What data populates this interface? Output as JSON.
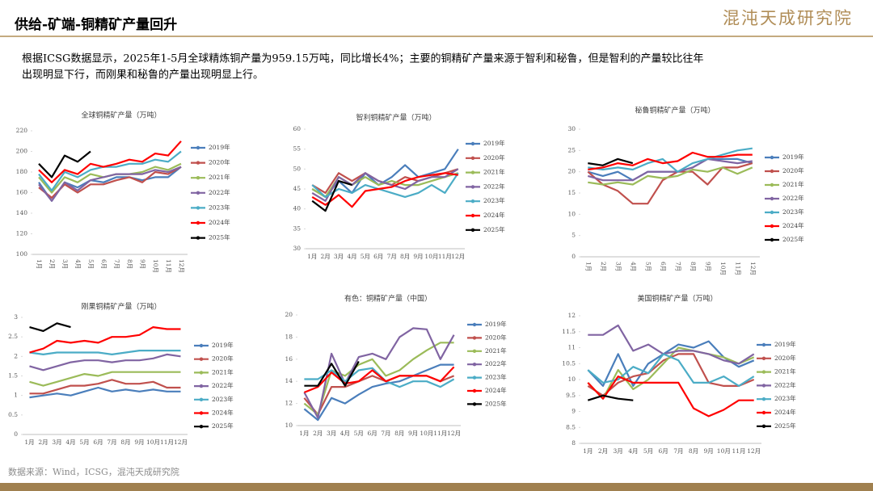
{
  "header": {
    "title": "供给-矿端-铜精矿产量回升",
    "logo": "混沌天成研究院"
  },
  "body_text": [
    "根据ICSG数据显示，2025年1-5月全球精炼铜产量为959.15万吨，同比增长4%；主要的铜精矿产量来源于智利和秘鲁，但是智利的产量较比往年",
    "出现明显下行，而刚果和秘鲁的产量出现明显上行。"
  ],
  "source": "数据来源：Wind，ICSG，混沌天成研究院",
  "chart_data": [
    {
      "type": "line",
      "title": "全球铜精矿产量（万吨）",
      "categories": [
        "1月",
        "2月",
        "3月",
        "4月",
        "5月",
        "6月",
        "7月",
        "8月",
        "9月",
        "10月",
        "11月",
        "12月"
      ],
      "ylim": [
        100,
        220
      ],
      "yticks": [
        100,
        120,
        140,
        160,
        180,
        200,
        220
      ],
      "series": [
        {
          "name": "2019年",
          "color": "#4a7ebb",
          "values": [
            170,
            152,
            170,
            165,
            172,
            170,
            175,
            175,
            172,
            175,
            175,
            185
          ]
        },
        {
          "name": "2020年",
          "color": "#c0504d",
          "values": [
            165,
            155,
            168,
            160,
            168,
            168,
            172,
            175,
            170,
            180,
            178,
            185
          ]
        },
        {
          "name": "2021年",
          "color": "#9bbb59",
          "values": [
            175,
            160,
            175,
            170,
            178,
            175,
            178,
            178,
            180,
            185,
            182,
            188
          ]
        },
        {
          "name": "2022年",
          "color": "#8064a2",
          "values": [
            168,
            152,
            170,
            162,
            172,
            175,
            178,
            178,
            178,
            182,
            180,
            185
          ]
        },
        {
          "name": "2023年",
          "color": "#4bacc6",
          "values": [
            178,
            162,
            180,
            175,
            182,
            185,
            185,
            188,
            188,
            192,
            190,
            200
          ]
        },
        {
          "name": "2024年",
          "color": "#ff0000",
          "values": [
            182,
            170,
            182,
            178,
            188,
            185,
            188,
            192,
            190,
            198,
            196,
            210
          ]
        },
        {
          "name": "2025年",
          "color": "#000000",
          "values": [
            188,
            175,
            196,
            190,
            200,
            null,
            null,
            null,
            null,
            null,
            null,
            null
          ]
        }
      ]
    },
    {
      "type": "line",
      "title": "智利铜精矿产量（万吨）",
      "categories": [
        "1月",
        "2月",
        "3月",
        "4月",
        "5月",
        "6月",
        "7月",
        "8月",
        "9月",
        "10月",
        "11月",
        "12月"
      ],
      "ylim": [
        30,
        60
      ],
      "yticks": [
        30,
        35,
        40,
        45,
        50,
        55,
        60
      ],
      "series": [
        {
          "name": "2019年",
          "color": "#4a7ebb",
          "values": [
            45,
            43,
            47,
            44,
            49,
            46,
            48,
            51,
            48,
            49,
            50,
            55
          ]
        },
        {
          "name": "2020年",
          "color": "#c0504d",
          "values": [
            46,
            44,
            49,
            47,
            49,
            47,
            46,
            48,
            47,
            48,
            49,
            50
          ]
        },
        {
          "name": "2021年",
          "color": "#9bbb59",
          "values": [
            45,
            43,
            48,
            46,
            48,
            46,
            47,
            46,
            46,
            47,
            48,
            49
          ]
        },
        {
          "name": "2022年",
          "color": "#8064a2",
          "values": [
            44,
            42,
            48,
            46,
            49,
            47,
            46,
            45,
            47,
            48,
            48,
            50
          ]
        },
        {
          "name": "2023年",
          "color": "#4bacc6",
          "values": [
            46,
            43,
            45,
            44,
            46,
            45,
            44,
            43,
            44,
            46,
            44,
            49
          ]
        },
        {
          "name": "2024年",
          "color": "#ff0000",
          "values": [
            43,
            41,
            43.5,
            40.5,
            44.5,
            45,
            45.5,
            47,
            48,
            48.5,
            49,
            48.5
          ]
        },
        {
          "name": "2025年",
          "color": "#000000",
          "values": [
            42,
            39.5,
            47,
            46,
            null,
            null,
            null,
            null,
            null,
            null,
            null,
            null
          ]
        }
      ]
    },
    {
      "type": "line",
      "title": "秘鲁铜精矿产量（万吨）",
      "categories": [
        "1月",
        "2月",
        "3月",
        "4月",
        "5月",
        "6月",
        "7月",
        "8月",
        "9月",
        "10月",
        "11月",
        "12月"
      ],
      "ylim": [
        0,
        30
      ],
      "yticks": [
        0,
        5,
        10,
        15,
        20,
        25,
        30
      ],
      "series": [
        {
          "name": "2019年",
          "color": "#4a7ebb",
          "values": [
            20,
            19,
            20,
            18,
            20,
            20,
            20,
            21,
            23,
            23,
            23,
            22
          ]
        },
        {
          "name": "2020年",
          "color": "#c0504d",
          "values": [
            20,
            17,
            15.5,
            12.5,
            12.5,
            18,
            20,
            20,
            17,
            21,
            21,
            22
          ]
        },
        {
          "name": "2021年",
          "color": "#9bbb59",
          "values": [
            17.5,
            17,
            17.5,
            17,
            19,
            18.5,
            19,
            20.5,
            20,
            21,
            19.5,
            21
          ]
        },
        {
          "name": "2022年",
          "color": "#8064a2",
          "values": [
            19,
            18,
            18,
            18,
            20,
            20,
            20,
            21,
            23,
            22.5,
            22,
            22.5
          ]
        },
        {
          "name": "2023年",
          "color": "#4bacc6",
          "values": [
            21,
            20.5,
            21,
            20.5,
            22,
            23,
            20,
            22,
            23,
            24,
            25,
            25.5
          ]
        },
        {
          "name": "2024年",
          "color": "#ff0000",
          "values": [
            20.5,
            21,
            22,
            21.5,
            23,
            22,
            22.5,
            24.5,
            23.5,
            23.5,
            24,
            24
          ]
        },
        {
          "name": "2025年",
          "color": "#000000",
          "values": [
            22,
            21.5,
            23,
            22,
            null,
            null,
            null,
            null,
            null,
            null,
            null,
            null
          ]
        }
      ]
    },
    {
      "type": "line",
      "title": "刚果铜精矿产量（万吨）",
      "categories": [
        "1月",
        "2月",
        "3月",
        "4月",
        "5月",
        "6月",
        "7月",
        "8月",
        "9月",
        "10月",
        "11月",
        "12月"
      ],
      "ylim": [
        0,
        3
      ],
      "yticks": [
        0,
        0.5,
        1,
        1.5,
        2,
        2.5,
        3
      ],
      "series": [
        {
          "name": "2019年",
          "color": "#4a7ebb",
          "values": [
            0.95,
            1,
            1.05,
            1,
            1.1,
            1.2,
            1.1,
            1.15,
            1.1,
            1.15,
            1.1,
            1.1
          ]
        },
        {
          "name": "2020年",
          "color": "#c0504d",
          "values": [
            1.05,
            1.05,
            1.15,
            1.25,
            1.25,
            1.3,
            1.4,
            1.3,
            1.3,
            1.35,
            1.2,
            1.2
          ]
        },
        {
          "name": "2021年",
          "color": "#9bbb59",
          "values": [
            1.35,
            1.25,
            1.35,
            1.45,
            1.55,
            1.5,
            1.6,
            1.6,
            1.6,
            1.6,
            1.6,
            1.6
          ]
        },
        {
          "name": "2022年",
          "color": "#8064a2",
          "values": [
            1.75,
            1.65,
            1.75,
            1.85,
            1.9,
            1.9,
            1.85,
            1.9,
            1.9,
            1.95,
            2.05,
            2
          ]
        },
        {
          "name": "2023年",
          "color": "#4bacc6",
          "values": [
            2.1,
            2.05,
            2.1,
            2.1,
            2.1,
            2.1,
            2.05,
            2.1,
            2.15,
            2.15,
            2.15,
            2.15
          ]
        },
        {
          "name": "2024年",
          "color": "#ff0000",
          "values": [
            2.1,
            2.2,
            2.4,
            2.35,
            2.4,
            2.35,
            2.5,
            2.5,
            2.55,
            2.75,
            2.7,
            2.7
          ]
        },
        {
          "name": "2025年",
          "color": "#000000",
          "values": [
            2.75,
            2.65,
            2.85,
            2.75,
            null,
            null,
            null,
            null,
            null,
            null,
            null,
            null
          ]
        }
      ]
    },
    {
      "type": "line",
      "title": "有色：铜精矿产量（中国）",
      "categories": [
        "1月",
        "2月",
        "3月",
        "4月",
        "5月",
        "6月",
        "7月",
        "8月",
        "9月",
        "10月",
        "11月",
        "12月"
      ],
      "ylim": [
        10,
        20
      ],
      "yticks": [
        10,
        12,
        14,
        16,
        18,
        20
      ],
      "series": [
        {
          "name": "2019年",
          "color": "#4a7ebb",
          "values": [
            11.5,
            10.5,
            12.5,
            12,
            12.8,
            13.5,
            13.8,
            14,
            14.5,
            15,
            15.5,
            15.5
          ]
        },
        {
          "name": "2020年",
          "color": "#c0504d",
          "values": [
            12.5,
            11,
            13.5,
            13.5,
            14,
            14.5,
            14,
            14.5,
            14.5,
            14.5,
            14,
            14.5
          ]
        },
        {
          "name": "2021年",
          "color": "#9bbb59",
          "values": [
            12,
            11,
            15,
            14.5,
            15.5,
            16,
            14.5,
            15,
            16,
            16.8,
            17.5,
            17.5
          ]
        },
        {
          "name": "2022年",
          "color": "#8064a2",
          "values": [
            13,
            10.7,
            16.5,
            13.8,
            16.2,
            16.5,
            16,
            18,
            18.8,
            18.7,
            16,
            18.2
          ]
        },
        {
          "name": "2023年",
          "color": "#4bacc6",
          "values": [
            14.2,
            14.2,
            15,
            14,
            15,
            15.2,
            14,
            13.5,
            14,
            14,
            13.5,
            14.2
          ]
        },
        {
          "name": "2024年",
          "color": "#ff0000",
          "values": [
            13,
            13.5,
            14.8,
            13.8,
            14,
            15,
            14,
            14.5,
            14.5,
            14.5,
            14,
            15.3
          ]
        },
        {
          "name": "2025年",
          "color": "#000000",
          "values": [
            13.6,
            13.6,
            15.6,
            13.6,
            15.8,
            null,
            null,
            null,
            null,
            null,
            null,
            null
          ]
        }
      ]
    },
    {
      "type": "line",
      "title": "美国铜精矿产量（万吨）",
      "categories": [
        "1月",
        "2月",
        "3月",
        "4月",
        "5月",
        "6月",
        "7月",
        "8月",
        "9月",
        "10月",
        "11月",
        "12月"
      ],
      "ylim": [
        8,
        12
      ],
      "yticks": [
        8,
        8.5,
        9,
        9.5,
        10,
        10.5,
        11,
        11.5,
        12
      ],
      "series": [
        {
          "name": "2019年",
          "color": "#4a7ebb",
          "values": [
            10.3,
            9.8,
            10.8,
            9.8,
            10.5,
            10.8,
            11.1,
            11,
            11.2,
            10.7,
            10.4,
            10.6
          ]
        },
        {
          "name": "2020年",
          "color": "#c0504d",
          "values": [
            9.8,
            9.5,
            9.9,
            10.1,
            10.2,
            10.6,
            10.8,
            10.8,
            9.9,
            9.8,
            9.8,
            10
          ]
        },
        {
          "name": "2021年",
          "color": "#9bbb59",
          "values": [
            9.9,
            9.4,
            10.3,
            9.7,
            10,
            10.5,
            11,
            10.9,
            10.8,
            10.7,
            10.5,
            10.7
          ]
        },
        {
          "name": "2022年",
          "color": "#8064a2",
          "values": [
            11.4,
            11.4,
            11.7,
            10.9,
            11.1,
            10.8,
            10.9,
            10.9,
            10.8,
            10.6,
            10.5,
            10.8
          ]
        },
        {
          "name": "2023年",
          "color": "#4bacc6",
          "values": [
            10.3,
            9.9,
            10,
            10.4,
            10.2,
            10.8,
            10.6,
            9.9,
            9.9,
            10.1,
            9.8,
            10.1
          ]
        },
        {
          "name": "2024年",
          "color": "#ff0000",
          "values": [
            9.9,
            9.4,
            10.1,
            9.9,
            9.9,
            9.9,
            9.9,
            9.1,
            8.85,
            9.05,
            9.35,
            9.35
          ]
        },
        {
          "name": "2025年",
          "color": "#000000",
          "values": [
            9.35,
            9.5,
            9.4,
            9.35,
            null,
            null,
            null,
            null,
            null,
            null,
            null,
            null
          ]
        }
      ]
    }
  ]
}
